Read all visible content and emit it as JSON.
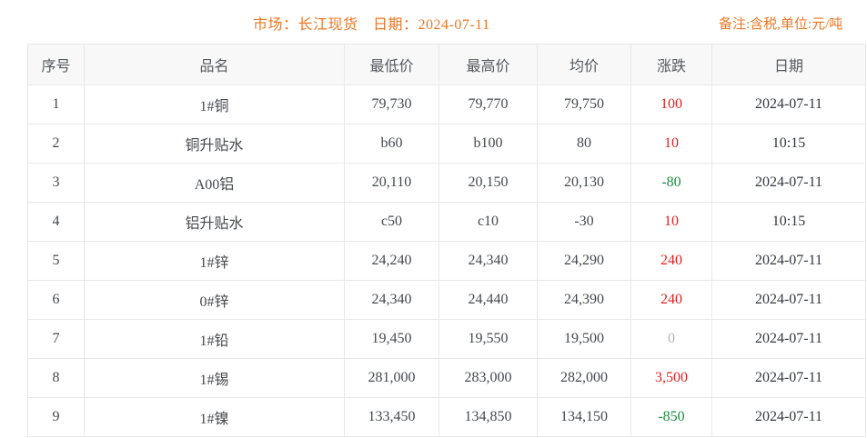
{
  "header": {
    "title": "市场：长江现货　日期：2024-07-11",
    "note": "备注:含税,单位:元/吨"
  },
  "colors": {
    "accent_orange": "#ee7623",
    "change_up_red": "#e22020",
    "change_down_green": "#17913e",
    "change_flat_gray": "#b5b5b5"
  },
  "table": {
    "columns": [
      "序号",
      "品名",
      "最低价",
      "最高价",
      "均价",
      "涨跌",
      "日期"
    ],
    "rows": [
      {
        "no": "1",
        "name": "1#铜",
        "low": "79,730",
        "high": "79,770",
        "avg": "79,750",
        "change": "100",
        "change_dir": "up",
        "date": "2024-07-11"
      },
      {
        "no": "2",
        "name": "铜升贴水",
        "low": "b60",
        "high": "b100",
        "avg": "80",
        "change": "10",
        "change_dir": "up",
        "date": "10:15"
      },
      {
        "no": "3",
        "name": "A00铝",
        "low": "20,110",
        "high": "20,150",
        "avg": "20,130",
        "change": "-80",
        "change_dir": "down",
        "date": "2024-07-11"
      },
      {
        "no": "4",
        "name": "铝升贴水",
        "low": "c50",
        "high": "c10",
        "avg": "-30",
        "change": "10",
        "change_dir": "up",
        "date": "10:15"
      },
      {
        "no": "5",
        "name": "1#锌",
        "low": "24,240",
        "high": "24,340",
        "avg": "24,290",
        "change": "240",
        "change_dir": "up",
        "date": "2024-07-11"
      },
      {
        "no": "6",
        "name": "0#锌",
        "low": "24,340",
        "high": "24,440",
        "avg": "24,390",
        "change": "240",
        "change_dir": "up",
        "date": "2024-07-11"
      },
      {
        "no": "7",
        "name": "1#铅",
        "low": "19,450",
        "high": "19,550",
        "avg": "19,500",
        "change": "0",
        "change_dir": "flat",
        "date": "2024-07-11"
      },
      {
        "no": "8",
        "name": "1#锡",
        "low": "281,000",
        "high": "283,000",
        "avg": "282,000",
        "change": "3,500",
        "change_dir": "up",
        "date": "2024-07-11"
      },
      {
        "no": "9",
        "name": "1#镍",
        "low": "133,450",
        "high": "134,850",
        "avg": "134,150",
        "change": "-850",
        "change_dir": "down",
        "date": "2024-07-11"
      }
    ]
  }
}
